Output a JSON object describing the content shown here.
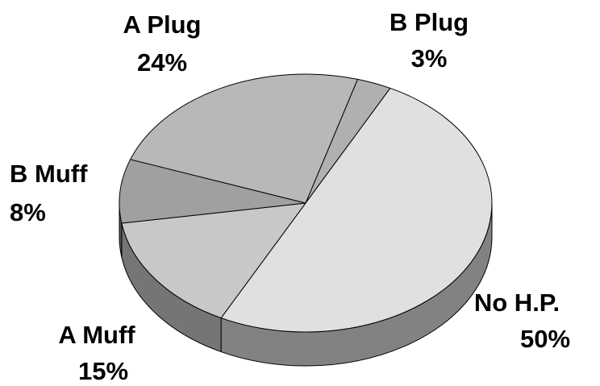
{
  "chart_data": {
    "type": "pie3d",
    "categories": [
      "B Plug",
      "No H.P.",
      "A Muff",
      "B Muff",
      "A Plug"
    ],
    "values": [
      3,
      50,
      15,
      8,
      24
    ],
    "value_labels": [
      "3%",
      "50%",
      "15%",
      "8%",
      "24%"
    ],
    "colors": [
      "#b0b0b0",
      "#e0e0e0",
      "#c8c8c8",
      "#a0a0a0",
      "#b8b8b8"
    ],
    "side_colors": [
      "#707070",
      "#828282",
      "#757575",
      "#5a5a5a",
      "#6a6a6a"
    ]
  }
}
